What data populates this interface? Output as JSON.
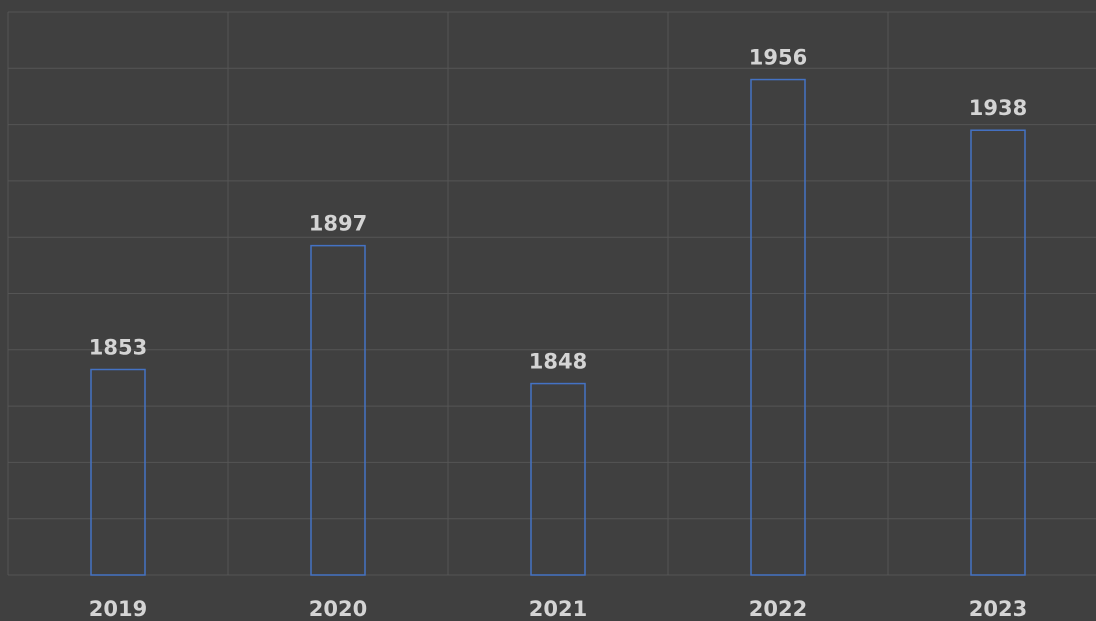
{
  "chart_data": {
    "type": "bar",
    "categories": [
      "2019",
      "2020",
      "2021",
      "2022",
      "2023"
    ],
    "values": [
      1853,
      1897,
      1848,
      1956,
      1938
    ],
    "color": "#4472c4",
    "ylim": [
      1780,
      1980
    ],
    "yticks": [
      1780,
      1800,
      1820,
      1840,
      1860,
      1880,
      1900,
      1920,
      1940,
      1960,
      1980
    ],
    "grid": true
  }
}
